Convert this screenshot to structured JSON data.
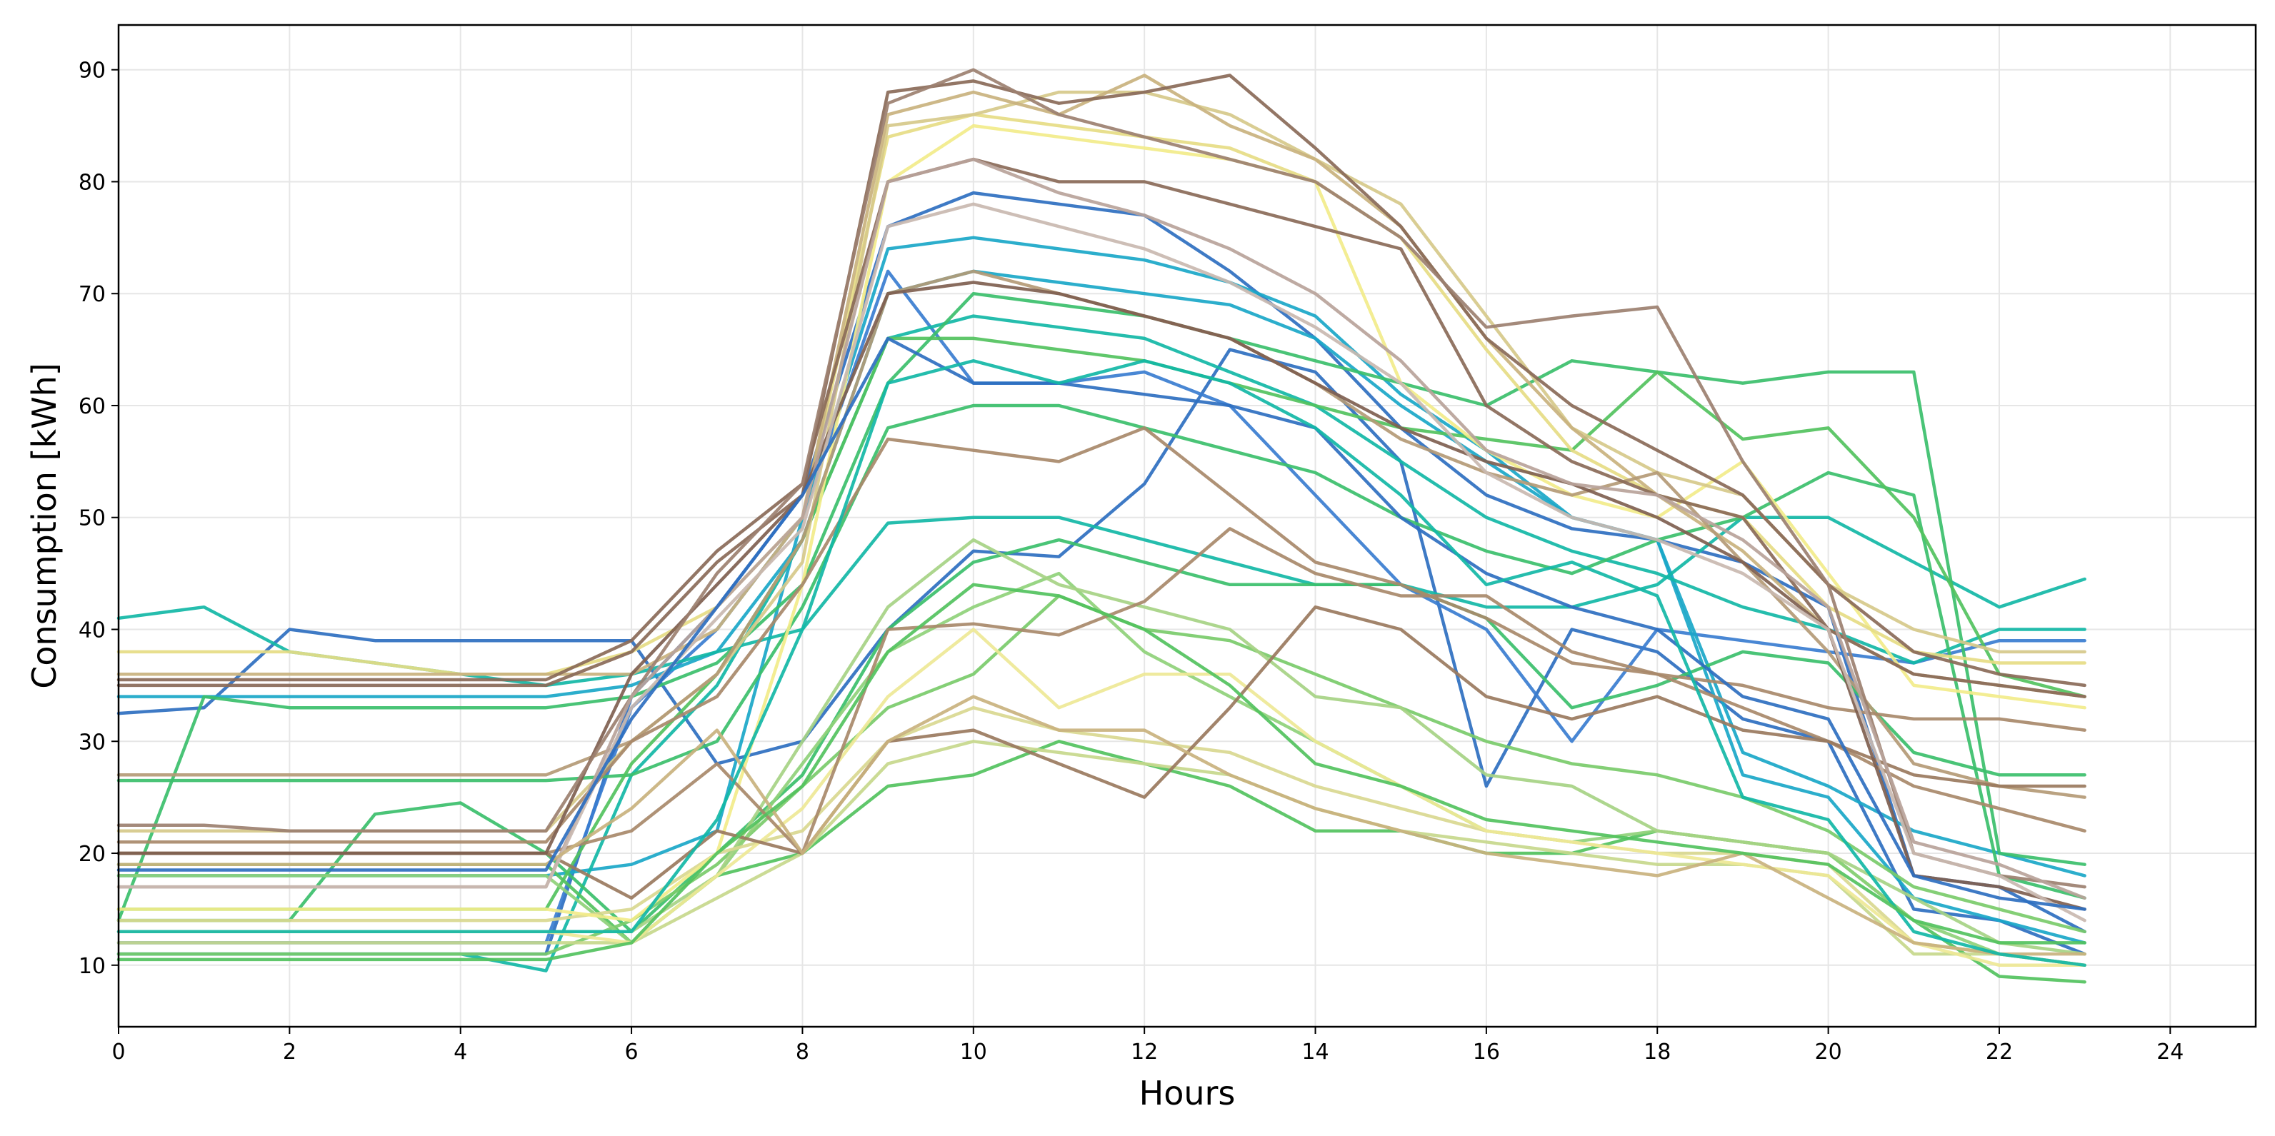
{
  "chart_data": {
    "type": "line",
    "title": "",
    "xlabel": "Hours",
    "ylabel": "Consumption [kWh]",
    "xlim": [
      0,
      25
    ],
    "ylim": [
      4.5,
      94
    ],
    "xticks": [
      0,
      2,
      4,
      6,
      8,
      10,
      12,
      14,
      16,
      18,
      20,
      22,
      24
    ],
    "yticks": [
      10,
      20,
      30,
      40,
      50,
      60,
      70,
      80,
      90
    ],
    "grid": true,
    "legend": "none",
    "x": [
      0,
      1,
      2,
      3,
      4,
      5,
      6,
      7,
      8,
      9,
      10,
      11,
      12,
      13,
      14,
      15,
      16,
      17,
      18,
      19,
      20,
      21,
      22,
      23
    ],
    "series": [
      {
        "name": "s01",
        "color": "#2e6fc0",
        "values": [
          32.5,
          33,
          40,
          39,
          39,
          39,
          39,
          28,
          30,
          40,
          47,
          46.5,
          53,
          65,
          63,
          55,
          26,
          40,
          38,
          32,
          30,
          15,
          14,
          11
        ]
      },
      {
        "name": "s02",
        "color": "#2e6fc0",
        "values": [
          11,
          11,
          11,
          11,
          11,
          11,
          34,
          42,
          52,
          76,
          79,
          78,
          77,
          72,
          66,
          58,
          52,
          49,
          48,
          46,
          42,
          18,
          17,
          13
        ]
      },
      {
        "name": "s03",
        "color": "#3a7dd0",
        "values": [
          12,
          12,
          12,
          12,
          12,
          12,
          33,
          40,
          50,
          72,
          62,
          62,
          63,
          60,
          52,
          44,
          40,
          30,
          40,
          39,
          38,
          37,
          39,
          39
        ]
      },
      {
        "name": "s04",
        "color": "#1aa7c8",
        "values": [
          18,
          18,
          18,
          18,
          18,
          18,
          19,
          22,
          50,
          74,
          75,
          74,
          73,
          71,
          68,
          61,
          56,
          50,
          48,
          27,
          25,
          16,
          14,
          12
        ]
      },
      {
        "name": "s05",
        "color": "#1aa7c8",
        "values": [
          34,
          34,
          34,
          34,
          34,
          34,
          35,
          38,
          48,
          70,
          72,
          71,
          70,
          69,
          66,
          60,
          55,
          50,
          48,
          29,
          26,
          22,
          20,
          18
        ]
      },
      {
        "name": "s06",
        "color": "#12b7a6",
        "values": [
          41,
          42,
          38,
          37,
          36,
          35,
          36,
          38,
          40,
          49.5,
          50,
          50,
          48,
          46,
          44,
          44,
          42,
          42,
          44,
          50,
          50,
          46,
          42,
          44.5
        ]
      },
      {
        "name": "s07",
        "color": "#12b7a6",
        "values": [
          11,
          11,
          11,
          11,
          11,
          9.5,
          27,
          35,
          48,
          66,
          68,
          67,
          66,
          63,
          60,
          55,
          50,
          47,
          45,
          42,
          40,
          37,
          40,
          40
        ]
      },
      {
        "name": "s08",
        "color": "#3bbf6b",
        "values": [
          14,
          34,
          33,
          33,
          33,
          33,
          34,
          37,
          44,
          62,
          70,
          69,
          68,
          66,
          64,
          62,
          60,
          64,
          63,
          62,
          63,
          63,
          20,
          19
        ]
      },
      {
        "name": "s09",
        "color": "#3bbf6b",
        "values": [
          26.5,
          26.5,
          26.5,
          26.5,
          26.5,
          26.5,
          27,
          30,
          42,
          58,
          60,
          60,
          58,
          56,
          54,
          50,
          47,
          45,
          48,
          50,
          54,
          52,
          18,
          16
        ]
      },
      {
        "name": "s10",
        "color": "#3bbf6b",
        "values": [
          14,
          14,
          14,
          23.5,
          24.5,
          20,
          13,
          20,
          27,
          40,
          46,
          48,
          46,
          44,
          44,
          44,
          41,
          33,
          35,
          38,
          37,
          29,
          27,
          27
        ]
      },
      {
        "name": "s11",
        "color": "#52c25e",
        "values": [
          19,
          19,
          19,
          19,
          19,
          19,
          12,
          18,
          20,
          26,
          27,
          30,
          28,
          26,
          22,
          22,
          20,
          20,
          22,
          21,
          20,
          14,
          9,
          8.5
        ]
      },
      {
        "name": "s12",
        "color": "#52c25e",
        "values": [
          15,
          15,
          15,
          15,
          15,
          15,
          28,
          36,
          48,
          66,
          66,
          65,
          64,
          62,
          60,
          58,
          57,
          56,
          63,
          57,
          58,
          50,
          36,
          34
        ]
      },
      {
        "name": "s13",
        "color": "#7acb6a",
        "values": [
          11,
          11,
          11,
          11,
          11,
          11,
          14,
          19,
          26,
          33,
          36,
          43,
          40,
          39,
          36,
          33,
          30,
          28,
          27,
          25,
          22,
          17,
          15,
          13
        ]
      },
      {
        "name": "s14",
        "color": "#8fd17a",
        "values": [
          18,
          18,
          18,
          18,
          18,
          18,
          12,
          18,
          28,
          38,
          42,
          45,
          38,
          34,
          30,
          26,
          22,
          21,
          22,
          21,
          20,
          14,
          11,
          10
        ]
      },
      {
        "name": "s15",
        "color": "#a6d384",
        "values": [
          13,
          13,
          13,
          13,
          13,
          13,
          13,
          18,
          30,
          42,
          48,
          44,
          42,
          40,
          34,
          33,
          27,
          26,
          22,
          21,
          20,
          16,
          12,
          11
        ]
      },
      {
        "name": "s16",
        "color": "#c7d88c",
        "values": [
          12,
          12,
          12,
          12,
          12,
          12,
          12,
          16,
          20,
          28,
          30,
          29,
          28,
          27,
          24,
          22,
          21,
          20,
          19,
          19,
          18,
          11,
          11,
          10
        ]
      },
      {
        "name": "s17",
        "color": "#d9d890",
        "values": [
          14,
          14,
          14,
          14,
          14,
          14,
          15,
          20,
          22,
          30,
          33,
          31,
          30,
          29,
          26,
          24,
          22,
          21,
          20,
          20,
          19,
          12,
          11,
          10
        ]
      },
      {
        "name": "s18",
        "color": "#eee896",
        "values": [
          13,
          13,
          13,
          13,
          13,
          13,
          12,
          18,
          24,
          34,
          40,
          33,
          36,
          36,
          30,
          26,
          22,
          21,
          20,
          19,
          18,
          12,
          10,
          10
        ]
      },
      {
        "name": "s19",
        "color": "#f2ec8a",
        "values": [
          15,
          15,
          15,
          15,
          15,
          15,
          14,
          20,
          44,
          80,
          85,
          84,
          83,
          82,
          80,
          62,
          56,
          52,
          50,
          55,
          45,
          35,
          34,
          33
        ]
      },
      {
        "name": "s20",
        "color": "#e6dc84",
        "values": [
          38,
          38,
          38,
          37,
          36,
          36,
          38,
          42,
          50,
          84,
          86,
          85,
          84,
          83,
          80,
          75,
          65,
          56,
          52,
          50,
          42,
          38,
          37,
          37
        ]
      },
      {
        "name": "s21",
        "color": "#d6c98a",
        "values": [
          22,
          22,
          22,
          22,
          22,
          22,
          30,
          36,
          46,
          85,
          86,
          88,
          88,
          86,
          82,
          78,
          68,
          58,
          54,
          52,
          44,
          40,
          38,
          38
        ]
      },
      {
        "name": "s22",
        "color": "#c9b27e",
        "values": [
          36,
          36,
          36,
          36,
          36,
          36,
          36,
          40,
          50,
          86,
          88,
          86,
          89.5,
          85,
          82,
          76,
          66,
          58,
          52,
          47,
          40,
          36,
          35,
          34
        ]
      },
      {
        "name": "s23",
        "color": "#b49a76",
        "values": [
          27,
          27,
          27,
          27,
          27,
          27,
          30,
          36,
          48,
          70,
          72,
          70,
          68,
          66,
          62,
          57,
          54,
          52,
          54,
          46,
          38,
          28,
          26,
          25
        ]
      },
      {
        "name": "s24",
        "color": "#a8896a",
        "values": [
          20,
          20,
          20,
          20,
          20,
          20,
          22,
          28,
          20,
          40,
          40.5,
          39.5,
          42.5,
          49,
          45,
          43,
          43,
          38,
          36,
          35,
          33,
          32,
          32,
          31
        ]
      },
      {
        "name": "s25",
        "color": "#a8896a",
        "values": [
          21,
          21,
          21,
          21,
          21,
          21,
          30,
          34,
          44,
          57,
          56,
          55,
          58,
          52,
          46,
          44,
          41,
          37,
          36,
          33,
          30,
          26,
          24,
          22
        ]
      },
      {
        "name": "s26",
        "color": "#9a7a5e",
        "values": [
          20,
          20,
          20,
          20,
          20,
          20,
          16,
          22,
          20,
          30,
          31,
          28,
          25,
          33,
          42,
          40,
          34,
          32,
          34,
          31,
          30,
          27,
          26,
          26
        ]
      },
      {
        "name": "s27",
        "color": "#8a6a58",
        "values": [
          35,
          35,
          35,
          35,
          35,
          35,
          38,
          46,
          52,
          88,
          89,
          87,
          88,
          89.5,
          83,
          76,
          66,
          60,
          56,
          52,
          44,
          38,
          36,
          35
        ]
      },
      {
        "name": "s28",
        "color": "#8a6a58",
        "values": [
          35.5,
          35.5,
          35.5,
          35.5,
          35.5,
          35.5,
          39,
          47,
          53,
          80,
          82,
          80,
          80,
          78,
          76,
          74,
          60,
          55,
          52,
          50,
          40,
          36,
          35,
          34
        ]
      },
      {
        "name": "s29",
        "color": "#7f6050",
        "values": [
          20,
          20,
          20,
          20,
          20,
          20,
          36,
          44,
          52,
          70,
          71,
          70,
          68,
          66,
          62,
          58,
          55,
          53,
          50,
          46,
          40,
          18,
          17,
          15
        ]
      },
      {
        "name": "s30",
        "color": "#9c8070",
        "values": [
          22.5,
          22.5,
          22,
          22,
          22,
          22,
          34,
          45,
          53,
          87,
          90,
          86,
          84,
          82,
          80,
          75,
          67,
          68,
          68.8,
          55,
          44,
          20,
          18,
          17
        ]
      },
      {
        "name": "s31",
        "color": "#b8a39a",
        "values": [
          17,
          17,
          17,
          17,
          17,
          17,
          34,
          42,
          50,
          80,
          82,
          79,
          77,
          74,
          70,
          64,
          56,
          53,
          52,
          48,
          42,
          21,
          19,
          16
        ]
      },
      {
        "name": "s32",
        "color": "#c9b8b0",
        "values": [
          17,
          17,
          17,
          17,
          17,
          17,
          33,
          41,
          49,
          76,
          78,
          76,
          74,
          71,
          67,
          62,
          54,
          50,
          48,
          45,
          40,
          20,
          18,
          14
        ]
      },
      {
        "name": "s33",
        "color": "#c9b27e",
        "values": [
          19,
          19,
          19,
          19,
          19,
          19,
          24,
          31,
          20,
          30,
          34,
          31,
          31,
          27,
          24,
          22,
          20,
          19,
          18,
          20,
          16,
          12,
          11,
          11
        ]
      },
      {
        "name": "s34",
        "color": "#2e6fc0",
        "values": [
          18.5,
          18.5,
          18.5,
          18.5,
          18.5,
          18.5,
          32,
          42,
          52,
          66,
          62,
          62,
          61,
          60,
          58,
          50,
          45,
          42,
          40,
          34,
          32,
          18,
          16,
          15
        ]
      },
      {
        "name": "s35",
        "color": "#12b7a6",
        "values": [
          13,
          13,
          13,
          13,
          13,
          13,
          13,
          23,
          40,
          62,
          64,
          62,
          64,
          62,
          58,
          52,
          44,
          46,
          43,
          25,
          23,
          13,
          11,
          10
        ]
      },
      {
        "name": "s36",
        "color": "#52c25e",
        "values": [
          10.5,
          10.5,
          10.5,
          10.5,
          10.5,
          10.5,
          12,
          20,
          26,
          38,
          44,
          43,
          40,
          35,
          28,
          26,
          23,
          22,
          21,
          20,
          19,
          14,
          12,
          12
        ]
      }
    ]
  }
}
